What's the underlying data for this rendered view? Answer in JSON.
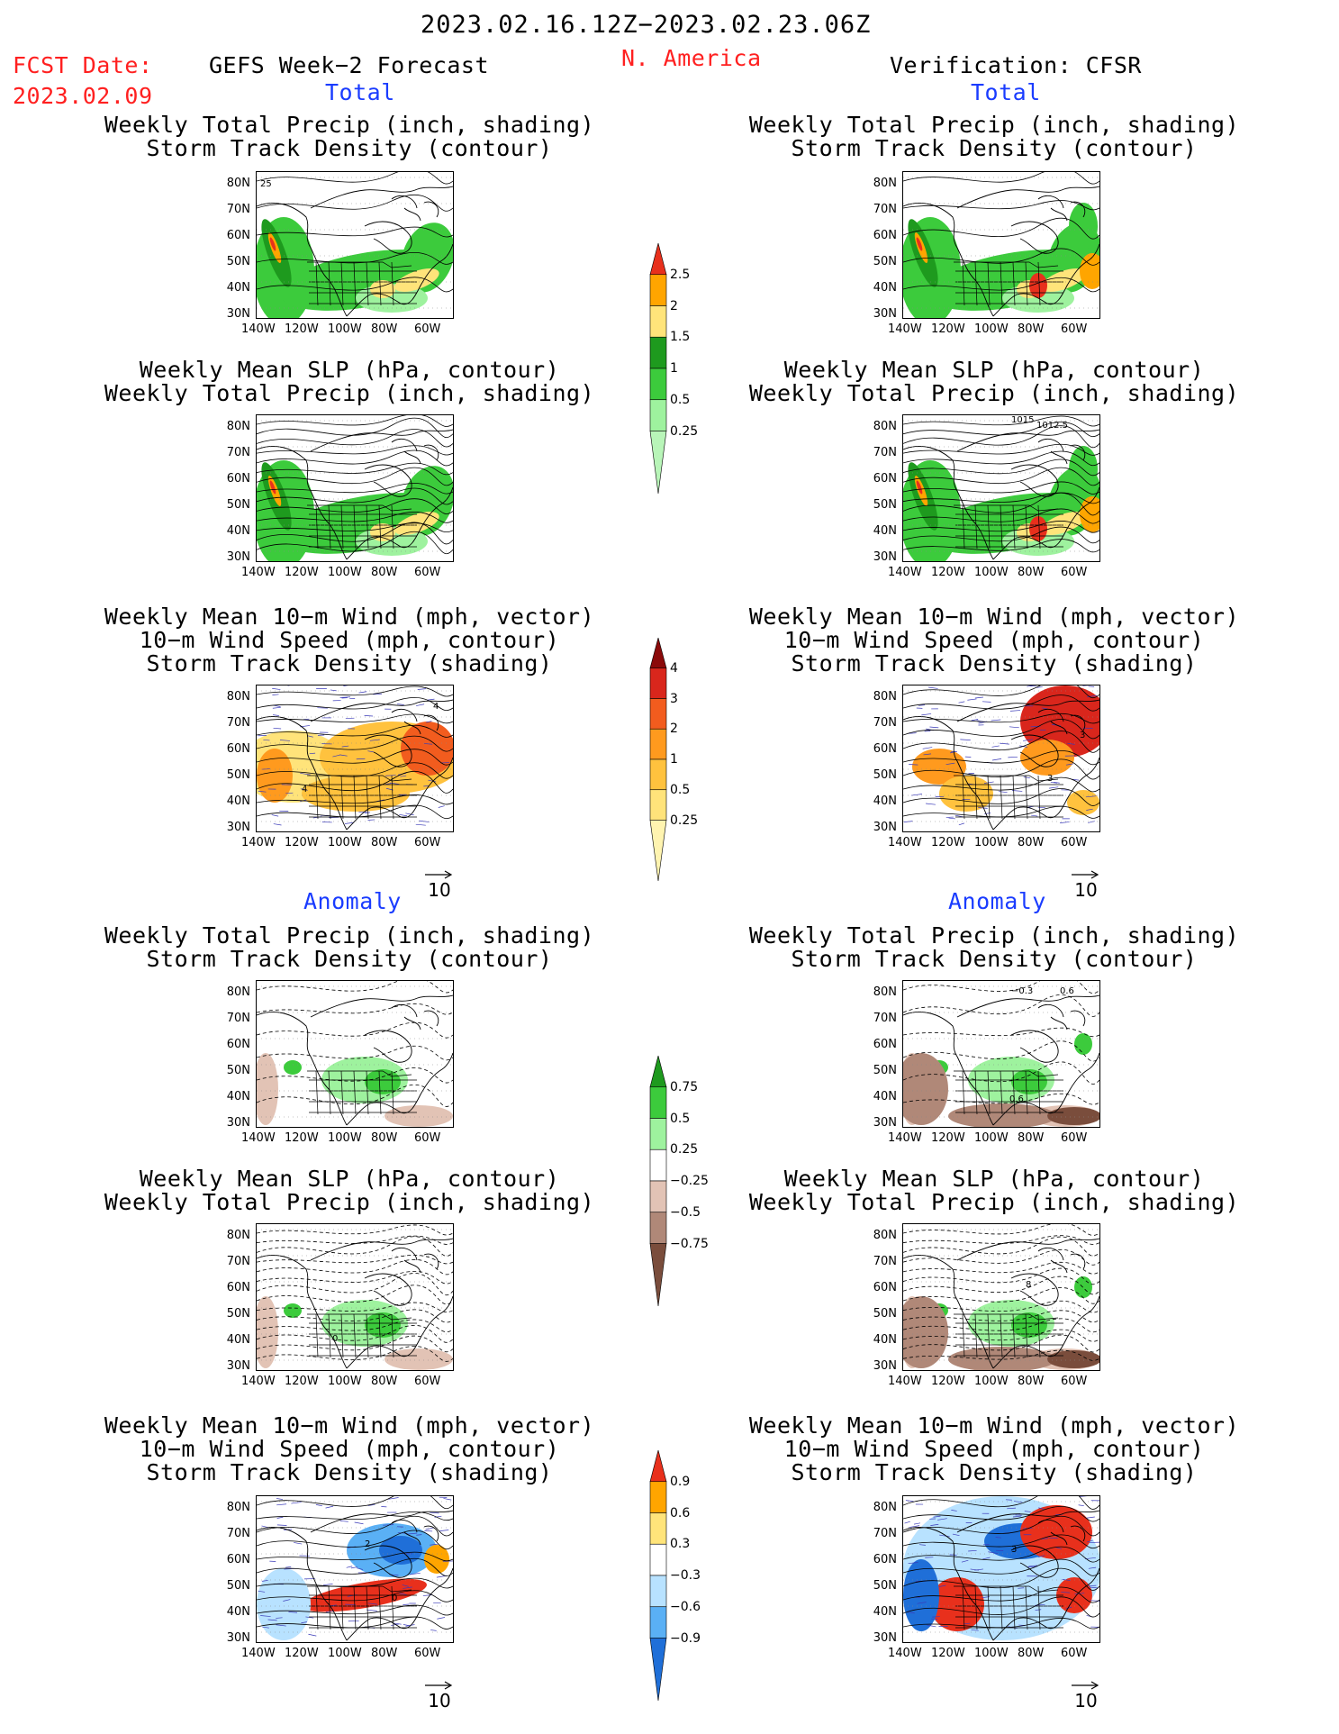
{
  "header": {
    "date_range": "2023.02.16.12Z−2023.02.23.06Z",
    "region": "N. America",
    "fcst_label": "FCST Date:",
    "fcst_date": "2023.02.09",
    "left_model": "GEFS Week−2 Forecast",
    "right_model": "Verification: CFSR"
  },
  "sections": {
    "total": "Total",
    "anomaly": "Anomaly"
  },
  "titles": {
    "precip_track": [
      "Weekly Total Precip (inch, shading)",
      "Storm Track Density (contour)"
    ],
    "slp_precip": [
      "Weekly Mean SLP (hPa, contour)",
      "Weekly Total Precip (inch, shading)"
    ],
    "wind_track": [
      "Weekly Mean 10−m Wind (mph, vector)",
      "10−m Wind Speed (mph, contour)",
      "Storm Track Density (shading)"
    ]
  },
  "axes": {
    "lat": [
      "80N",
      "70N",
      "60N",
      "50N",
      "40N",
      "30N"
    ],
    "lon": [
      "140W",
      "120W",
      "100W",
      "80W",
      "60W"
    ]
  },
  "vector_ref": "10",
  "colorbars": {
    "precip_total": {
      "labels": [
        "2.5",
        "2",
        "1.5",
        "1",
        "0.5",
        "0.25"
      ],
      "colors": [
        "#e8301c",
        "#ffa500",
        "#ffe47a",
        "#1e9a1e",
        "#3ccb3c",
        "#9ef29e",
        "#b8f5b8"
      ]
    },
    "track_total": {
      "labels": [
        "4",
        "3",
        "2",
        "1",
        "0.5",
        "0.25"
      ],
      "colors": [
        "#8b0a0a",
        "#d9261c",
        "#f25c1e",
        "#ff9a1e",
        "#ffc23e",
        "#ffe37a",
        "#fff4b0"
      ]
    },
    "precip_anom": {
      "labels": [
        "0.75",
        "0.5",
        "0.25",
        "−0.25",
        "−0.5",
        "−0.75"
      ],
      "colors": [
        "#1e9a1e",
        "#3ccb3c",
        "#9ef29e",
        "#ffffff",
        "#e2c3b5",
        "#b08878",
        "#7a4d3c"
      ]
    },
    "track_anom": {
      "labels": [
        "0.9",
        "0.6",
        "0.3",
        "−0.3",
        "−0.6",
        "−0.9"
      ],
      "colors": [
        "#e8301c",
        "#ffa500",
        "#ffe47a",
        "#ffffff",
        "#b8e2ff",
        "#5ab0f5",
        "#1f6fd8"
      ]
    }
  },
  "contour_labels": {
    "left_total_precip": "25",
    "left_total_wind_a": "4",
    "left_total_wind_b": "4",
    "right_total_wind_a": "3",
    "right_total_wind_b": "3",
    "right_total_slp_a": "1015",
    "right_total_slp_b": "1012.5",
    "right_anom_precip_a": "−0.3",
    "right_anom_precip_b": "0.6",
    "right_anom_precip_c": "0.6",
    "right_anom_slp": "8",
    "left_anom_slp": "0",
    "left_anom_wind_a": "2",
    "left_anom_wind_b": "0",
    "right_anom_wind": "3"
  }
}
